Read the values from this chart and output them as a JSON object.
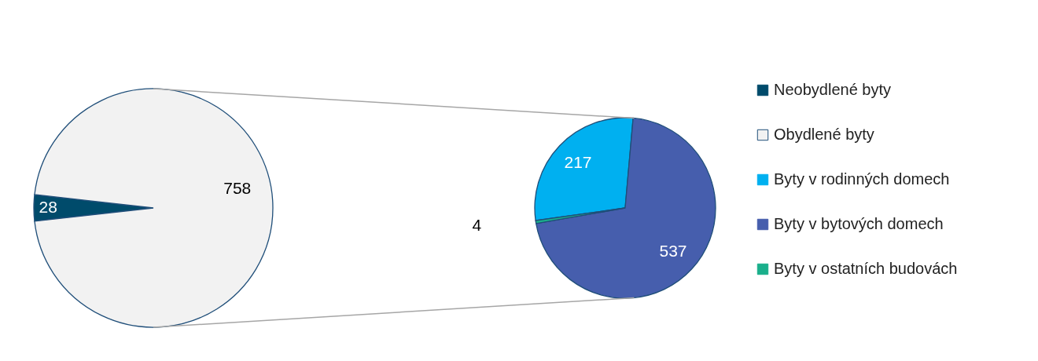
{
  "chart_data": [
    {
      "type": "pie",
      "categories": [
        "Neobydlené byty",
        "Obydlené byty"
      ],
      "values": [
        28,
        758
      ],
      "colors": [
        "#004b6b",
        "#f2f2f2"
      ],
      "data_labels": true,
      "legend": "right"
    },
    {
      "type": "pie",
      "categories": [
        "Byty v rodinných domech",
        "Byty v bytových domech",
        "Byty v ostatních budovách"
      ],
      "values": [
        217,
        537,
        4
      ],
      "colors": [
        "#00b0f0",
        "#465ead",
        "#1aaf8b"
      ],
      "data_labels": true,
      "legend": "right"
    }
  ]
}
